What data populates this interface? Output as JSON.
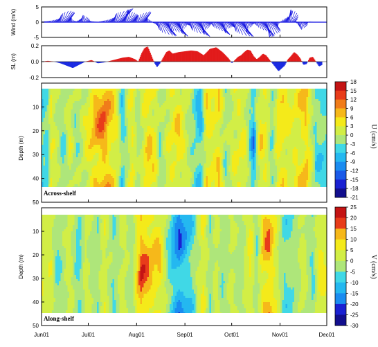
{
  "chart_data": [
    {
      "type": "line",
      "panel": "wind",
      "ylabel": "Wind (m/s)",
      "ylim": [
        -5,
        5
      ],
      "yticks": [
        -5,
        0,
        5
      ],
      "color": "#1010e0",
      "x_day": [
        0,
        3,
        6,
        9,
        12,
        14,
        16,
        18,
        20,
        22,
        24,
        26,
        28,
        30,
        32,
        34,
        36,
        38,
        40,
        42,
        45,
        48,
        51,
        54,
        57,
        60,
        62,
        64,
        66,
        68,
        70,
        72,
        74,
        76,
        78,
        80,
        82,
        84,
        86,
        88,
        90,
        92,
        94,
        96,
        98,
        100,
        102,
        104,
        106,
        108,
        110,
        112,
        114,
        116,
        118,
        120,
        122,
        124,
        126,
        128,
        130,
        132,
        134,
        136,
        138,
        140,
        142,
        144,
        146,
        148,
        150,
        152,
        154,
        156,
        158,
        160,
        162,
        164,
        166,
        168,
        170,
        172,
        174,
        176,
        178,
        180
      ],
      "y": [
        0.2,
        0.3,
        0.5,
        1.0,
        2.5,
        3.8,
        3.0,
        1.8,
        0.6,
        0.3,
        1.2,
        2.4,
        1.5,
        0.5,
        0.3,
        0.2,
        0.1,
        0.3,
        0.5,
        0.8,
        1.8,
        3.2,
        4.5,
        4.0,
        2.6,
        1.4,
        2.5,
        3.6,
        2.2,
        1.0,
        0.4,
        -0.5,
        -1.8,
        -3.5,
        -4.6,
        -4.2,
        -2.5,
        -3.2,
        -4.8,
        -3.6,
        -2.2,
        -0.8,
        -1.2,
        -2.6,
        -3.8,
        -4.8,
        -3.8,
        -2.4,
        -1.2,
        -0.5,
        -1.5,
        -2.8,
        -4.2,
        -3.5,
        -2.2,
        -1.4,
        -2.0,
        -3.2,
        -4.5,
        -4.8,
        -3.5,
        -2.0,
        -0.8,
        -0.4,
        -1.3,
        -2.8,
        -4.5,
        -5.0,
        -4.2,
        -3.0,
        -1.8,
        -0.6,
        0.8,
        2.5,
        4.2,
        3.6,
        1.5,
        -1.2,
        -2.5,
        -1.4,
        -0.4,
        0.2,
        0.1,
        0.0,
        0.0,
        0.0
      ]
    },
    {
      "type": "area",
      "panel": "sea_level",
      "ylabel": "SL (m)",
      "ylim": [
        -0.2,
        0.2
      ],
      "yticks": [
        -0.2,
        0.0,
        0.2
      ],
      "positive_color": "#e21a1a",
      "negative_color": "#1a2ae2",
      "x_day": [
        0,
        4,
        8,
        12,
        16,
        20,
        24,
        28,
        32,
        36,
        40,
        44,
        48,
        52,
        56,
        60,
        62,
        64,
        66,
        68,
        70,
        72,
        74,
        76,
        78,
        80,
        82,
        84,
        88,
        92,
        96,
        100,
        104,
        108,
        112,
        116,
        120,
        122,
        124,
        126,
        128,
        130,
        132,
        134,
        136,
        138,
        140,
        142,
        144,
        146,
        148,
        152,
        156,
        158,
        160,
        162,
        164,
        166,
        168,
        170,
        172,
        174,
        176,
        178,
        180
      ],
      "y": [
        0.0,
        0.01,
        0.0,
        -0.02,
        -0.05,
        -0.08,
        -0.04,
        0.0,
        0.02,
        -0.02,
        -0.01,
        0.01,
        0.03,
        0.05,
        0.06,
        0.03,
        0.0,
        0.1,
        0.17,
        0.19,
        0.1,
        0.0,
        -0.07,
        -0.02,
        0.05,
        0.12,
        0.14,
        0.1,
        0.12,
        0.13,
        0.14,
        0.13,
        0.08,
        0.16,
        0.18,
        0.12,
        0.04,
        -0.02,
        0.02,
        0.06,
        0.08,
        0.12,
        0.15,
        0.14,
        0.07,
        0.03,
        0.06,
        0.1,
        0.08,
        0.03,
        -0.02,
        -0.12,
        -0.05,
        0.03,
        0.07,
        0.12,
        0.09,
        0.04,
        -0.04,
        -0.03,
        0.05,
        0.06,
        0.0,
        -0.06,
        -0.04
      ]
    },
    {
      "type": "heatmap",
      "panel": "U",
      "label": "Across-shelf",
      "ylabel": "Depth (m)",
      "ylim": [
        50,
        0
      ],
      "yticks": [
        10,
        20,
        30,
        40,
        50
      ],
      "colorbar_label": "U (cm/s)",
      "colorbar_ticks": [
        18,
        15,
        12,
        9,
        6,
        3,
        0,
        -3,
        -6,
        -9,
        -12,
        -15,
        -18,
        -21
      ],
      "data_depth_range": [
        3,
        44
      ],
      "columns_x_day": [
        4,
        6,
        14,
        18,
        22,
        30,
        34,
        40,
        44,
        48,
        52,
        58,
        62,
        68,
        73,
        76,
        82,
        88,
        92,
        98,
        102,
        106,
        110,
        114,
        118,
        124,
        130,
        136,
        140,
        144,
        148,
        152,
        156,
        160,
        166,
        170,
        176
      ],
      "columns_value": [
        -5,
        4,
        -4,
        3,
        -3,
        4,
        8,
        12,
        7,
        4,
        -6,
        5,
        -2,
        7,
        4,
        -3,
        3,
        6,
        2,
        -4,
        -8,
        5,
        4,
        6,
        -3,
        3,
        4,
        -10,
        5,
        4,
        -4,
        6,
        5,
        3,
        5,
        8,
        -5
      ]
    },
    {
      "type": "heatmap",
      "panel": "V",
      "label": "Along-shelf",
      "ylabel": "Depth (m)",
      "ylim": [
        50,
        0
      ],
      "yticks": [
        10,
        20,
        30,
        40,
        50
      ],
      "colorbar_label": "V (cm/s)",
      "colorbar_ticks": [
        25,
        20,
        15,
        10,
        5,
        0,
        -5,
        -10,
        -15,
        -20,
        -25,
        -30
      ],
      "data_depth_range": [
        3,
        44
      ],
      "columns_x_day": [
        6,
        10,
        18,
        24,
        28,
        36,
        40,
        46,
        52,
        58,
        62,
        64,
        70,
        76,
        82,
        88,
        96,
        104,
        108,
        112,
        116,
        122,
        128,
        134,
        138,
        142,
        146,
        150,
        156,
        162,
        168,
        174,
        178
      ],
      "columns_value": [
        4,
        -7,
        3,
        -9,
        2,
        -4,
        5,
        -6,
        3,
        -5,
        12,
        20,
        12,
        10,
        -8,
        -20,
        -10,
        8,
        -6,
        4,
        -5,
        2,
        -4,
        8,
        -6,
        12,
        15,
        6,
        -8,
        -5,
        3,
        -7,
        6
      ]
    }
  ],
  "x_axis": {
    "ticks": [
      {
        "label": "Jun01",
        "day": 0
      },
      {
        "label": "Jul01",
        "day": 30
      },
      {
        "label": "Aug01",
        "day": 61
      },
      {
        "label": "Sep01",
        "day": 92
      },
      {
        "label": "Oct01",
        "day": 122
      },
      {
        "label": "Nov01",
        "day": 153
      },
      {
        "label": "Dec01",
        "day": 183
      }
    ]
  },
  "colorscale": [
    "#120f8e",
    "#1a21d2",
    "#1a5ae8",
    "#1a8cf0",
    "#24b8f0",
    "#40d8e6",
    "#7ee8b4",
    "#aee67a",
    "#d2ee46",
    "#f4ea1a",
    "#f6b81a",
    "#f07c1a",
    "#e83c1a",
    "#c41414"
  ]
}
